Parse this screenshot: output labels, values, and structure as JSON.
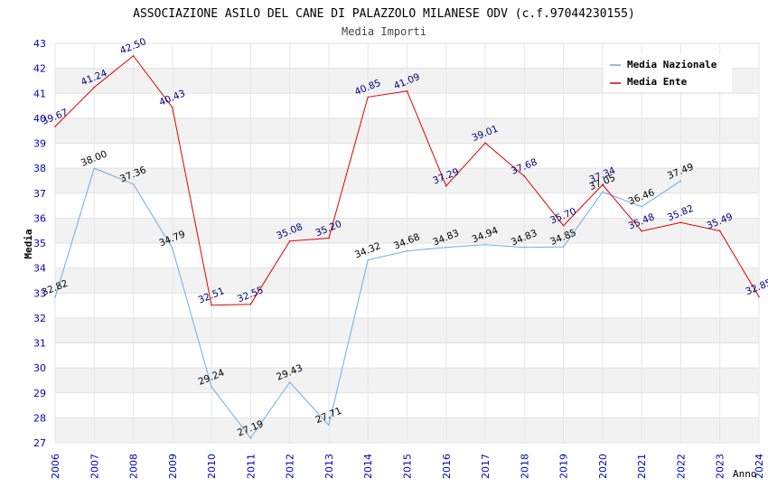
{
  "chart_data": {
    "type": "line",
    "title": "ASSOCIAZIONE ASILO DEL CANE DI PALAZZOLO MILANESE ODV (c.f.97044230155)",
    "subtitle": "Media Importi",
    "xlabel": "Anno",
    "ylabel": "Media",
    "ylim": [
      27,
      43
    ],
    "yticks": [
      "27",
      "28",
      "29",
      "30",
      "31",
      "32",
      "33",
      "34",
      "35",
      "36",
      "37",
      "38",
      "39",
      "40",
      "41",
      "42",
      "43"
    ],
    "categories": [
      "2006",
      "2007",
      "2008",
      "2009",
      "2010",
      "2011",
      "2012",
      "2013",
      "2014",
      "2015",
      "2016",
      "2017",
      "2018",
      "2019",
      "2020",
      "2021",
      "2022",
      "2023",
      "2024"
    ],
    "legend_position": "top-right",
    "grid": true,
    "colors": {
      "nazionale": "#6aaee8",
      "ente": "#e00000",
      "axis_text": "#0000c0",
      "nazionale_label": "#000000",
      "ente_label": "#000080"
    },
    "series": [
      {
        "name": "Media Nazionale",
        "values": [
          32.82,
          38.0,
          37.36,
          34.79,
          29.24,
          27.19,
          29.43,
          27.71,
          34.32,
          34.68,
          34.83,
          34.94,
          34.83,
          34.85,
          37.05,
          36.46,
          37.49,
          null,
          null
        ],
        "labels": [
          "32.82",
          "38.00",
          "37.36",
          "34.79",
          "29.24",
          "27.19",
          "29.43",
          "27.71",
          "34.32",
          "34.68",
          "34.83",
          "34.94",
          "34.83",
          "34.85",
          "37.05",
          "36.46",
          "37.49",
          null,
          null
        ]
      },
      {
        "name": "Media Ente",
        "values": [
          39.67,
          41.24,
          42.5,
          40.43,
          32.51,
          32.55,
          35.08,
          35.2,
          40.85,
          41.09,
          37.29,
          39.01,
          37.68,
          35.7,
          37.34,
          35.48,
          35.82,
          35.49,
          32.85
        ],
        "labels": [
          "39.67",
          "41.24",
          "42.50",
          "40.43",
          "32.51",
          "32.55",
          "35.08",
          "35.20",
          "40.85",
          "41.09",
          "37.29",
          "39.01",
          "37.68",
          "35.70",
          "37.34",
          "35.48",
          "35.82",
          "35.49",
          "32.85"
        ]
      }
    ]
  }
}
